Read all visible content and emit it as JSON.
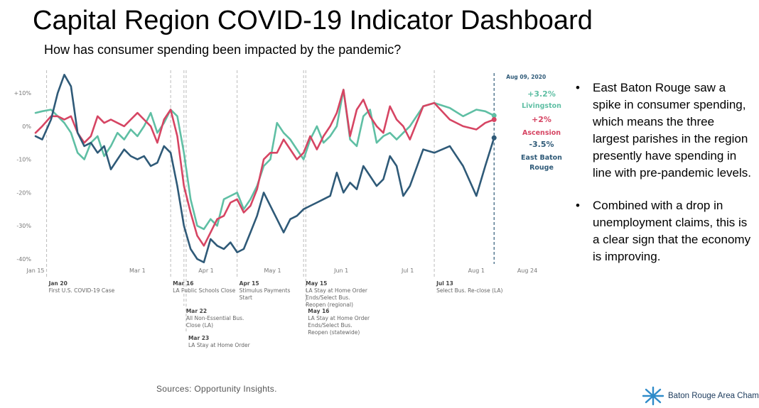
{
  "header": {
    "title": "Capital Region COVID-19 Indicator Dashboard",
    "subtitle": "How has consumer spending been impacted by the pandemic?"
  },
  "bullets": [
    "East Baton Rouge saw a spike in consumer spending, which means the three largest parishes in the region presently have spending in line with pre-pandemic levels.",
    "Combined with a drop in unemployment claims, this is a clear sign that the economy is improving."
  ],
  "footer": {
    "source": "Sources: Opportunity Insights.",
    "logo_text": "Baton Rouge Area Chamber."
  },
  "colors": {
    "livingston": "#5fbfa4",
    "ascension": "#d64563",
    "ebr": "#2f5a78",
    "annotation": "#666666"
  },
  "chart_data": {
    "type": "line",
    "x_ticks": [
      {
        "date": "2020-01-15",
        "label": "Jan 15"
      },
      {
        "date": "2020-03-01",
        "label": "Mar 1"
      },
      {
        "date": "2020-04-01",
        "label": "Apr 1"
      },
      {
        "date": "2020-05-01",
        "label": "May 1"
      },
      {
        "date": "2020-06-01",
        "label": "Jun 1"
      },
      {
        "date": "2020-07-01",
        "label": "Jul 1"
      },
      {
        "date": "2020-08-01",
        "label": "Aug 1"
      },
      {
        "date": "2020-08-24",
        "label": "Aug 24"
      }
    ],
    "xlim": [
      "2020-01-15",
      "2020-08-24"
    ],
    "y_ticks": [
      {
        "value": 10,
        "label": "+10%"
      },
      {
        "value": 0,
        "label": "0%"
      },
      {
        "value": -10,
        "label": "-10%"
      },
      {
        "value": -20,
        "label": "-20%"
      },
      {
        "value": -30,
        "label": "-30%"
      },
      {
        "value": -40,
        "label": "-40%"
      }
    ],
    "ylim": [
      -41.5,
      16
    ],
    "grid": false,
    "end_date_label": "Aug 09, 2020",
    "end_labels": [
      {
        "series": "Livingston",
        "value_text": "+3.2%",
        "name_text": "Livingston"
      },
      {
        "series": "Ascension",
        "value_text": "+2%",
        "name_text": "Ascension"
      },
      {
        "series": "East Baton Rouge",
        "value_text": "-3.5%",
        "name_lines": [
          "East Baton",
          "Rouge"
        ]
      }
    ],
    "series": [
      {
        "name": "Livingston",
        "color": "#5fbfa4",
        "points": [
          [
            "2020-01-15",
            4
          ],
          [
            "2020-01-18",
            4.5
          ],
          [
            "2020-01-22",
            5
          ],
          [
            "2020-01-25",
            3
          ],
          [
            "2020-01-28",
            1
          ],
          [
            "2020-01-31",
            -2
          ],
          [
            "2020-02-03",
            -8
          ],
          [
            "2020-02-06",
            -10
          ],
          [
            "2020-02-09",
            -5
          ],
          [
            "2020-02-12",
            -3
          ],
          [
            "2020-02-15",
            -9
          ],
          [
            "2020-02-18",
            -6
          ],
          [
            "2020-02-21",
            -2
          ],
          [
            "2020-02-24",
            -4
          ],
          [
            "2020-02-27",
            -1
          ],
          [
            "2020-03-01",
            -3
          ],
          [
            "2020-03-04",
            0
          ],
          [
            "2020-03-07",
            4
          ],
          [
            "2020-03-10",
            -2
          ],
          [
            "2020-03-13",
            1
          ],
          [
            "2020-03-16",
            5
          ],
          [
            "2020-03-19",
            3
          ],
          [
            "2020-03-22",
            -8
          ],
          [
            "2020-03-25",
            -22
          ],
          [
            "2020-03-28",
            -30
          ],
          [
            "2020-03-31",
            -31
          ],
          [
            "2020-04-03",
            -28
          ],
          [
            "2020-04-06",
            -30
          ],
          [
            "2020-04-09",
            -22
          ],
          [
            "2020-04-12",
            -21
          ],
          [
            "2020-04-15",
            -20
          ],
          [
            "2020-04-18",
            -25
          ],
          [
            "2020-04-21",
            -22
          ],
          [
            "2020-04-24",
            -18
          ],
          [
            "2020-04-27",
            -12
          ],
          [
            "2020-04-30",
            -10
          ],
          [
            "2020-05-03",
            1
          ],
          [
            "2020-05-06",
            -2
          ],
          [
            "2020-05-09",
            -4
          ],
          [
            "2020-05-12",
            -7
          ],
          [
            "2020-05-15",
            -10
          ],
          [
            "2020-05-18",
            -4
          ],
          [
            "2020-05-21",
            0
          ],
          [
            "2020-05-24",
            -5
          ],
          [
            "2020-05-27",
            -3
          ],
          [
            "2020-05-30",
            0
          ],
          [
            "2020-06-02",
            11
          ],
          [
            "2020-06-05",
            -4
          ],
          [
            "2020-06-08",
            -6
          ],
          [
            "2020-06-11",
            3
          ],
          [
            "2020-06-14",
            5
          ],
          [
            "2020-06-17",
            -5
          ],
          [
            "2020-06-20",
            -3
          ],
          [
            "2020-06-23",
            -2
          ],
          [
            "2020-06-26",
            -4
          ],
          [
            "2020-06-29",
            -2
          ],
          [
            "2020-07-02",
            0
          ],
          [
            "2020-07-08",
            6
          ],
          [
            "2020-07-13",
            7
          ],
          [
            "2020-07-20",
            5.5
          ],
          [
            "2020-07-26",
            3
          ],
          [
            "2020-08-01",
            5
          ],
          [
            "2020-08-05",
            4.5
          ],
          [
            "2020-08-09",
            3.2
          ]
        ]
      },
      {
        "name": "Ascension",
        "color": "#d64563",
        "points": [
          [
            "2020-01-15",
            -2
          ],
          [
            "2020-01-18",
            0
          ],
          [
            "2020-01-22",
            3
          ],
          [
            "2020-01-25",
            3
          ],
          [
            "2020-01-28",
            2
          ],
          [
            "2020-01-31",
            3
          ],
          [
            "2020-02-03",
            -2
          ],
          [
            "2020-02-06",
            -5
          ],
          [
            "2020-02-09",
            -3
          ],
          [
            "2020-02-12",
            3
          ],
          [
            "2020-02-15",
            1
          ],
          [
            "2020-02-18",
            2
          ],
          [
            "2020-02-21",
            1
          ],
          [
            "2020-02-24",
            0
          ],
          [
            "2020-02-27",
            2
          ],
          [
            "2020-03-01",
            4
          ],
          [
            "2020-03-04",
            2
          ],
          [
            "2020-03-07",
            0
          ],
          [
            "2020-03-10",
            -5
          ],
          [
            "2020-03-13",
            2
          ],
          [
            "2020-03-16",
            5
          ],
          [
            "2020-03-19",
            -3
          ],
          [
            "2020-03-22",
            -18
          ],
          [
            "2020-03-25",
            -26
          ],
          [
            "2020-03-28",
            -33
          ],
          [
            "2020-03-31",
            -36
          ],
          [
            "2020-04-03",
            -32
          ],
          [
            "2020-04-06",
            -28
          ],
          [
            "2020-04-09",
            -27
          ],
          [
            "2020-04-12",
            -23
          ],
          [
            "2020-04-15",
            -22
          ],
          [
            "2020-04-18",
            -26
          ],
          [
            "2020-04-21",
            -24
          ],
          [
            "2020-04-24",
            -19
          ],
          [
            "2020-04-27",
            -10
          ],
          [
            "2020-04-30",
            -8
          ],
          [
            "2020-05-03",
            -8
          ],
          [
            "2020-05-06",
            -4
          ],
          [
            "2020-05-09",
            -7
          ],
          [
            "2020-05-12",
            -10
          ],
          [
            "2020-05-15",
            -8
          ],
          [
            "2020-05-18",
            -3
          ],
          [
            "2020-05-21",
            -7
          ],
          [
            "2020-05-24",
            -3
          ],
          [
            "2020-05-27",
            0
          ],
          [
            "2020-05-30",
            4
          ],
          [
            "2020-06-02",
            11
          ],
          [
            "2020-06-05",
            -3
          ],
          [
            "2020-06-08",
            5
          ],
          [
            "2020-06-11",
            8
          ],
          [
            "2020-06-14",
            3
          ],
          [
            "2020-06-17",
            0
          ],
          [
            "2020-06-20",
            -2
          ],
          [
            "2020-06-23",
            6
          ],
          [
            "2020-06-26",
            2
          ],
          [
            "2020-06-29",
            0
          ],
          [
            "2020-07-02",
            -4
          ],
          [
            "2020-07-08",
            6
          ],
          [
            "2020-07-13",
            7
          ],
          [
            "2020-07-20",
            2
          ],
          [
            "2020-07-26",
            0
          ],
          [
            "2020-08-01",
            -1
          ],
          [
            "2020-08-05",
            1
          ],
          [
            "2020-08-09",
            2
          ]
        ]
      },
      {
        "name": "East Baton Rouge",
        "color": "#2f5a78",
        "points": [
          [
            "2020-01-15",
            -3
          ],
          [
            "2020-01-18",
            -4
          ],
          [
            "2020-01-22",
            2
          ],
          [
            "2020-01-25",
            10
          ],
          [
            "2020-01-28",
            15.5
          ],
          [
            "2020-01-31",
            12
          ],
          [
            "2020-02-03",
            -2
          ],
          [
            "2020-02-06",
            -6
          ],
          [
            "2020-02-09",
            -5
          ],
          [
            "2020-02-12",
            -8
          ],
          [
            "2020-02-15",
            -6
          ],
          [
            "2020-02-18",
            -13
          ],
          [
            "2020-02-21",
            -10
          ],
          [
            "2020-02-24",
            -7
          ],
          [
            "2020-02-27",
            -9
          ],
          [
            "2020-03-01",
            -10
          ],
          [
            "2020-03-04",
            -9
          ],
          [
            "2020-03-07",
            -12
          ],
          [
            "2020-03-10",
            -11
          ],
          [
            "2020-03-13",
            -6
          ],
          [
            "2020-03-16",
            -8
          ],
          [
            "2020-03-19",
            -18
          ],
          [
            "2020-03-22",
            -30
          ],
          [
            "2020-03-25",
            -37
          ],
          [
            "2020-03-28",
            -40
          ],
          [
            "2020-03-31",
            -41
          ],
          [
            "2020-04-03",
            -34
          ],
          [
            "2020-04-06",
            -36
          ],
          [
            "2020-04-09",
            -37
          ],
          [
            "2020-04-12",
            -35
          ],
          [
            "2020-04-15",
            -38
          ],
          [
            "2020-04-18",
            -37
          ],
          [
            "2020-04-21",
            -32
          ],
          [
            "2020-04-24",
            -27
          ],
          [
            "2020-04-27",
            -20
          ],
          [
            "2020-04-30",
            -24
          ],
          [
            "2020-05-03",
            -28
          ],
          [
            "2020-05-06",
            -32
          ],
          [
            "2020-05-09",
            -28
          ],
          [
            "2020-05-12",
            -27
          ],
          [
            "2020-05-15",
            -25
          ],
          [
            "2020-05-18",
            -24
          ],
          [
            "2020-05-21",
            -23
          ],
          [
            "2020-05-24",
            -22
          ],
          [
            "2020-05-27",
            -21
          ],
          [
            "2020-05-30",
            -14
          ],
          [
            "2020-06-02",
            -20
          ],
          [
            "2020-06-05",
            -17
          ],
          [
            "2020-06-08",
            -19
          ],
          [
            "2020-06-11",
            -12
          ],
          [
            "2020-06-14",
            -15
          ],
          [
            "2020-06-17",
            -18
          ],
          [
            "2020-06-20",
            -16
          ],
          [
            "2020-06-23",
            -9
          ],
          [
            "2020-06-26",
            -12
          ],
          [
            "2020-06-29",
            -21
          ],
          [
            "2020-07-02",
            -18
          ],
          [
            "2020-07-08",
            -7
          ],
          [
            "2020-07-13",
            -8
          ],
          [
            "2020-07-20",
            -6
          ],
          [
            "2020-07-26",
            -12
          ],
          [
            "2020-08-01",
            -21
          ],
          [
            "2020-08-05",
            -12
          ],
          [
            "2020-08-09",
            -3.5
          ]
        ]
      }
    ],
    "events": [
      {
        "date": "2020-01-20",
        "title": "Jan 20",
        "lines": [
          "First U.S. COVID-19 Case"
        ],
        "row": 0
      },
      {
        "date": "2020-03-16",
        "title": "Mar 16",
        "lines": [
          "LA Public Schools Close"
        ],
        "row": 0
      },
      {
        "date": "2020-03-22",
        "title": "Mar 22",
        "lines": [
          "All Non-Essential Bus.",
          "Close (LA)"
        ],
        "row": 1
      },
      {
        "date": "2020-03-23",
        "title": "Mar 23",
        "lines": [
          "LA Stay at Home Order"
        ],
        "row": 2
      },
      {
        "date": "2020-04-15",
        "title": "Apr 15",
        "lines": [
          "Stimulus Payments",
          "Start"
        ],
        "row": 0
      },
      {
        "date": "2020-05-15",
        "title": "May 15",
        "lines": [
          "LA Stay at Home Order",
          "Ends/Select Bus.",
          "Reopen (regional)"
        ],
        "row": 0
      },
      {
        "date": "2020-05-16",
        "title": "May 16",
        "lines": [
          "LA Stay at Home Order",
          "Ends/Select Bus.",
          "Reopen (statewide)"
        ],
        "row": 1
      },
      {
        "date": "2020-07-13",
        "title": "Jul 13",
        "lines": [
          "Select Bus. Re-close (LA)"
        ],
        "row": 0
      }
    ]
  }
}
